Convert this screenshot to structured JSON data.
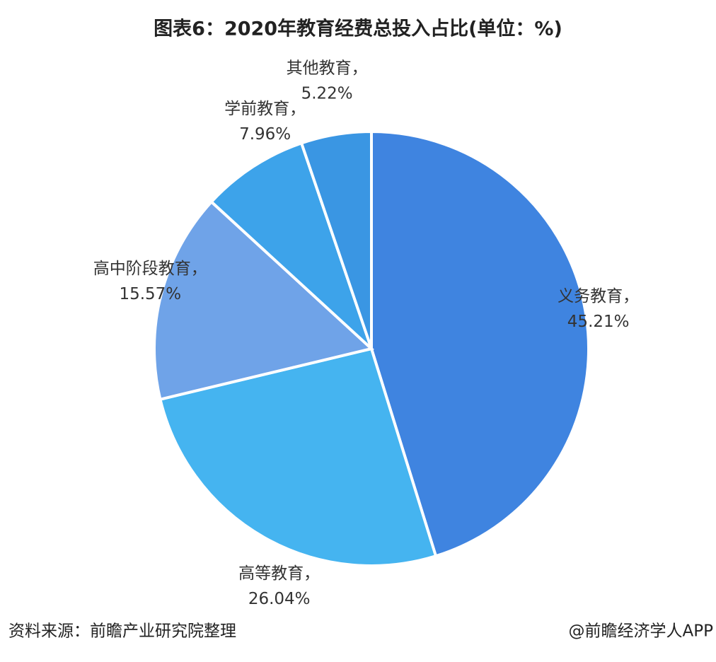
{
  "chart_data": {
    "type": "pie",
    "title": "图表6：2020年教育经费总投入占比(单位：%)",
    "categories": [
      "义务教育，",
      "高等教育，",
      "高中阶段教育，",
      "学前教育，",
      "其他教育，"
    ],
    "values": [
      45.21,
      26.04,
      15.57,
      7.96,
      5.22
    ],
    "value_labels": [
      "45.21%",
      "26.04%",
      "15.57%",
      "7.96%",
      "5.22%"
    ],
    "colors": [
      "#3f84e0",
      "#45b4f0",
      "#6fa3e8",
      "#3da3ea",
      "#3a96e3"
    ],
    "source": "资料来源：前瞻产业研究院整理",
    "credit": "@前瞻经济学人APP"
  }
}
